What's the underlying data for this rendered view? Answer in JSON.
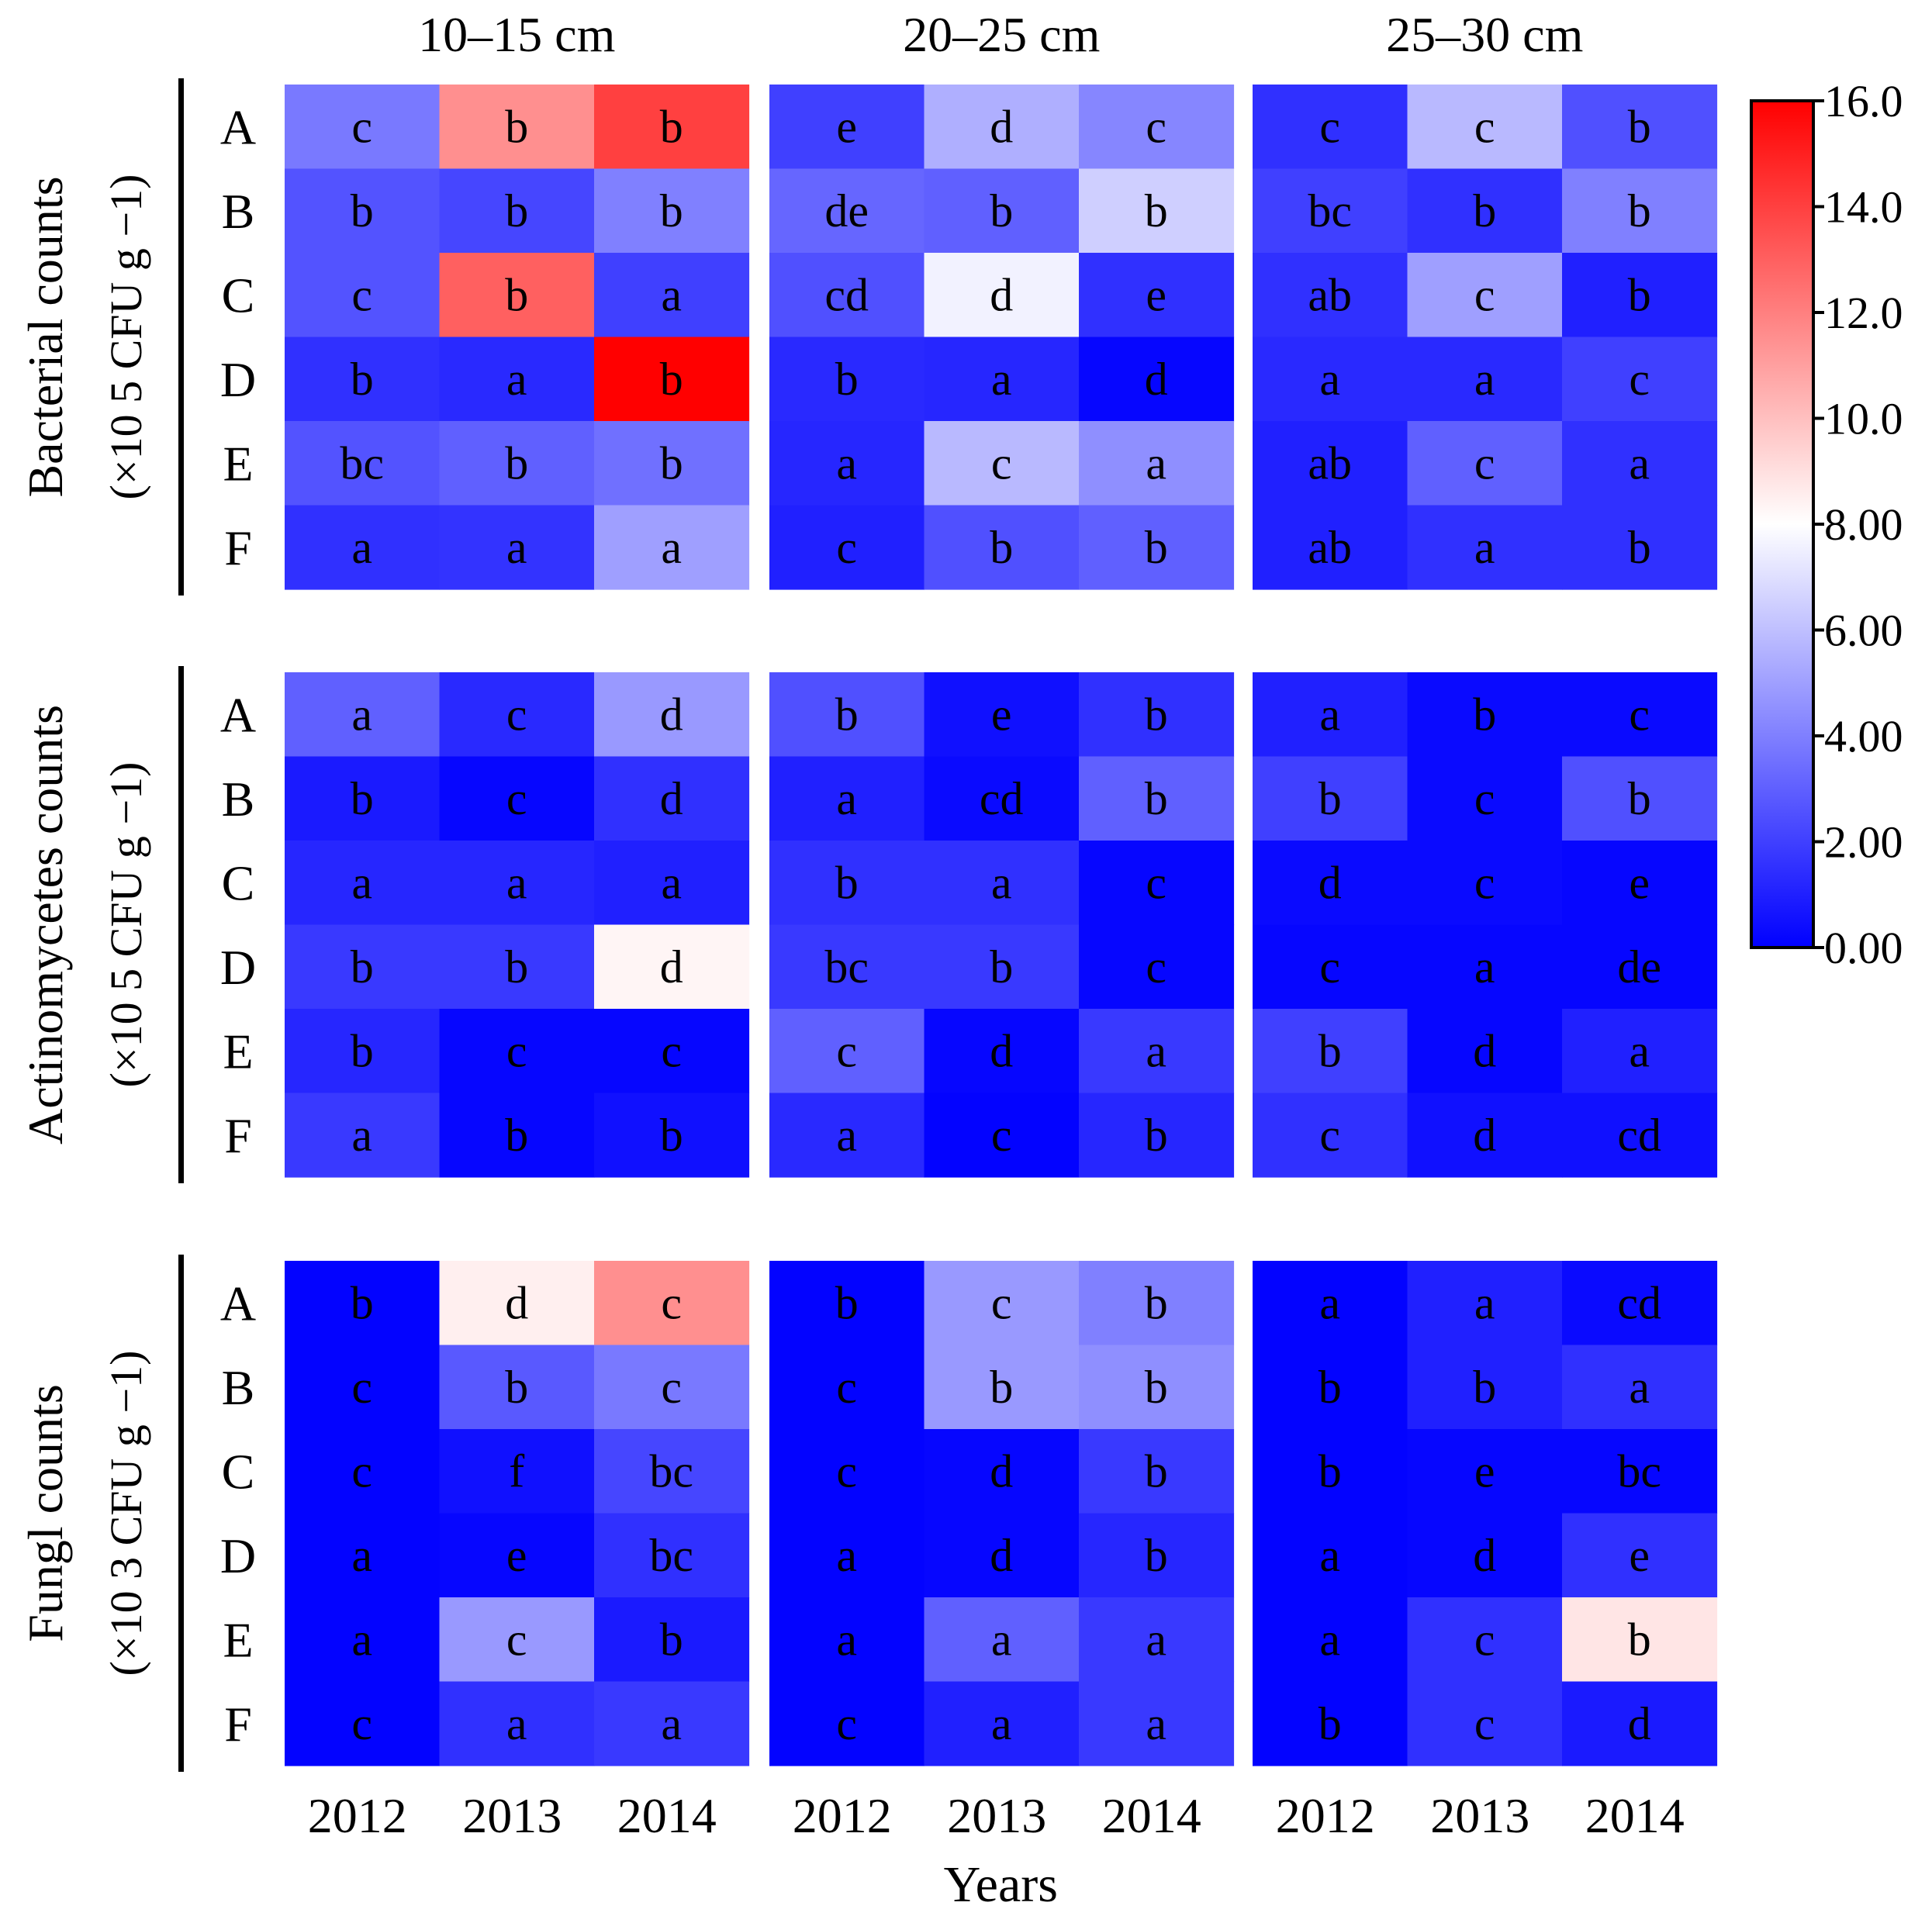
{
  "chart_data": {
    "type": "heatmap",
    "depth_titles": [
      "10–15 cm",
      "20–25 cm",
      "25–30 cm"
    ],
    "rows": [
      "A",
      "B",
      "C",
      "D",
      "E",
      "F"
    ],
    "years": [
      "2012",
      "2013",
      "2014"
    ],
    "xlabel": "Years",
    "color_scale": {
      "min": 0,
      "max": 16,
      "ticks": [
        "0.00",
        "2.00",
        "4.00",
        "6.00",
        "8.00",
        "10.0",
        "12.0",
        "14.0",
        "16.0"
      ],
      "tick_values": [
        0,
        2,
        4,
        6,
        8,
        10,
        12,
        14,
        16
      ],
      "colors": [
        "#0000ff",
        "#ffffff",
        "#ff0000"
      ]
    },
    "panels": [
      {
        "name": "Bacterial counts",
        "unit": "(×10 5  CFU g −1)",
        "values": [
          [
            [
              3.8,
              11.5,
              14.0
            ],
            [
              2.0,
              5.5,
              4.2
            ],
            [
              1.5,
              5.8,
              2.5
            ]
          ],
          [
            [
              2.6,
              2.2,
              4.0
            ],
            [
              3.2,
              3.0,
              6.5
            ],
            [
              2.0,
              1.5,
              4.0
            ]
          ],
          [
            [
              2.6,
              13.0,
              2.0
            ],
            [
              2.5,
              7.6,
              1.5
            ],
            [
              1.5,
              5.0,
              1.0
            ]
          ],
          [
            [
              1.5,
              1.3,
              16.0
            ],
            [
              1.3,
              1.2,
              0.2
            ],
            [
              1.3,
              1.3,
              2.0
            ]
          ],
          [
            [
              2.6,
              3.0,
              3.5
            ],
            [
              1.2,
              5.8,
              4.5
            ],
            [
              1.0,
              3.0,
              1.5
            ]
          ],
          [
            [
              1.5,
              1.6,
              5.0
            ],
            [
              1.0,
              2.5,
              3.0
            ],
            [
              1.0,
              1.5,
              1.5
            ]
          ]
        ],
        "letters": [
          [
            [
              "c",
              "b",
              "b"
            ],
            [
              "e",
              "d",
              "c"
            ],
            [
              "c",
              "c",
              "b"
            ]
          ],
          [
            [
              "b",
              "b",
              "b"
            ],
            [
              "de",
              "b",
              "b"
            ],
            [
              "bc",
              "b",
              "b"
            ]
          ],
          [
            [
              "c",
              "b",
              "a"
            ],
            [
              "cd",
              "d",
              "e"
            ],
            [
              "ab",
              "c",
              "b"
            ]
          ],
          [
            [
              "b",
              "a",
              "b"
            ],
            [
              "b",
              "a",
              "d"
            ],
            [
              "a",
              "a",
              "c"
            ]
          ],
          [
            [
              "bc",
              "b",
              "b"
            ],
            [
              "a",
              "c",
              "a"
            ],
            [
              "ab",
              "c",
              "a"
            ]
          ],
          [
            [
              "a",
              "a",
              "a"
            ],
            [
              "c",
              "b",
              "b"
            ],
            [
              "ab",
              "a",
              "b"
            ]
          ]
        ]
      },
      {
        "name": "Actinomycetes counts",
        "unit": "(×10 5  CFU g −1)",
        "values": [
          [
            [
              3.0,
              1.3,
              4.8
            ],
            [
              2.5,
              0.5,
              1.5
            ],
            [
              1.0,
              0.3,
              0.3
            ]
          ],
          [
            [
              0.8,
              0.2,
              1.5
            ],
            [
              1.0,
              0.3,
              3.0
            ],
            [
              2.0,
              0.3,
              2.5
            ]
          ],
          [
            [
              1.2,
              1.2,
              1.0
            ],
            [
              1.5,
              1.5,
              0.2
            ],
            [
              0.3,
              0.3,
              0.2
            ]
          ],
          [
            [
              1.8,
              1.8,
              8.3
            ],
            [
              1.8,
              1.8,
              0.2
            ],
            [
              0.2,
              0.2,
              0.2
            ]
          ],
          [
            [
              1.2,
              0.2,
              0.2
            ],
            [
              3.0,
              0.2,
              1.8
            ],
            [
              2.0,
              0.2,
              1.0
            ]
          ],
          [
            [
              1.8,
              0.2,
              0.5
            ],
            [
              1.3,
              0.1,
              1.2
            ],
            [
              1.5,
              0.5,
              0.5
            ]
          ]
        ],
        "letters": [
          [
            [
              "a",
              "c",
              "d"
            ],
            [
              "b",
              "e",
              "b"
            ],
            [
              "a",
              "b",
              "c"
            ]
          ],
          [
            [
              "b",
              "c",
              "d"
            ],
            [
              "a",
              "cd",
              "b"
            ],
            [
              "b",
              "c",
              "b"
            ]
          ],
          [
            [
              "a",
              "a",
              "a"
            ],
            [
              "b",
              "a",
              "c"
            ],
            [
              "d",
              "c",
              "e"
            ]
          ],
          [
            [
              "b",
              "b",
              "d"
            ],
            [
              "bc",
              "b",
              "c"
            ],
            [
              "c",
              "a",
              "de"
            ]
          ],
          [
            [
              "b",
              "c",
              "c"
            ],
            [
              "c",
              "d",
              "a"
            ],
            [
              "b",
              "d",
              "a"
            ]
          ],
          [
            [
              "a",
              "b",
              "b"
            ],
            [
              "a",
              "c",
              "b"
            ],
            [
              "c",
              "d",
              "cd"
            ]
          ]
        ]
      },
      {
        "name": "Fungl counts",
        "unit": "(×10 3  CFU g −1)",
        "values": [
          [
            [
              0.1,
              8.5,
              11.5
            ],
            [
              0.1,
              4.8,
              4.0
            ],
            [
              0.1,
              1.0,
              0.3
            ]
          ],
          [
            [
              0.1,
              2.8,
              3.8
            ],
            [
              0.1,
              4.8,
              4.5
            ],
            [
              0.1,
              1.0,
              1.5
            ]
          ],
          [
            [
              0.1,
              0.5,
              2.2
            ],
            [
              0.1,
              0.2,
              1.8
            ],
            [
              0.1,
              0.2,
              0.2
            ]
          ],
          [
            [
              0.1,
              0.2,
              1.5
            ],
            [
              0.1,
              0.2,
              1.2
            ],
            [
              0.1,
              0.2,
              1.5
            ]
          ],
          [
            [
              0.1,
              4.8,
              0.8
            ],
            [
              0.1,
              3.0,
              1.8
            ],
            [
              0.1,
              1.5,
              8.8
            ]
          ],
          [
            [
              0.1,
              1.5,
              1.8
            ],
            [
              0.1,
              1.0,
              1.8
            ],
            [
              0.1,
              1.5,
              0.8
            ]
          ]
        ],
        "letters": [
          [
            [
              "b",
              "d",
              "c"
            ],
            [
              "b",
              "c",
              "b"
            ],
            [
              "a",
              "a",
              "cd"
            ]
          ],
          [
            [
              "c",
              "b",
              "c"
            ],
            [
              "c",
              "b",
              "b"
            ],
            [
              "b",
              "b",
              "a"
            ]
          ],
          [
            [
              "c",
              "f",
              "bc"
            ],
            [
              "c",
              "d",
              "b"
            ],
            [
              "b",
              "e",
              "bc"
            ]
          ],
          [
            [
              "a",
              "e",
              "bc"
            ],
            [
              "a",
              "d",
              "b"
            ],
            [
              "a",
              "d",
              "e"
            ]
          ],
          [
            [
              "a",
              "c",
              "b"
            ],
            [
              "a",
              "a",
              "a"
            ],
            [
              "a",
              "c",
              "b"
            ]
          ],
          [
            [
              "c",
              "a",
              "a"
            ],
            [
              "c",
              "a",
              "a"
            ],
            [
              "b",
              "c",
              "d"
            ]
          ]
        ]
      }
    ]
  }
}
